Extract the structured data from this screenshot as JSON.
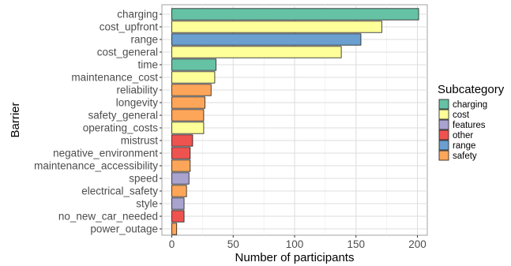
{
  "chart_data": {
    "type": "bar",
    "orientation": "horizontal",
    "xlabel": "Number of participants",
    "ylabel": "Barrier",
    "xlim": [
      0,
      210
    ],
    "x_ticks": [
      "0",
      "50",
      "100",
      "150",
      "200"
    ],
    "x_tick_values": [
      0,
      50,
      100,
      150,
      200
    ],
    "grid": true,
    "legend_position": "right",
    "legend": {
      "title": "Subcategory",
      "entries": [
        {
          "name": "charging",
          "color": "#66c2a5"
        },
        {
          "name": "cost",
          "color": "#ffff99"
        },
        {
          "name": "features",
          "color": "#a9a3d0"
        },
        {
          "name": "other",
          "color": "#ef5350"
        },
        {
          "name": "range",
          "color": "#6a9fcf"
        },
        {
          "name": "safety",
          "color": "#fda65a"
        }
      ]
    },
    "categories": [
      "charging",
      "cost_upfront",
      "range",
      "cost_general",
      "time",
      "maintenance_cost",
      "reliability",
      "longevity",
      "safety_general",
      "operating_costs",
      "mistrust",
      "negative_environment",
      "maintenance_accessibility",
      "speed",
      "electrical_safety",
      "style",
      "no_new_car_needed",
      "power_outage"
    ],
    "values": [
      201,
      171,
      154,
      138,
      36,
      35,
      32,
      27,
      26,
      26,
      17,
      15,
      15,
      14,
      12,
      10,
      10,
      4
    ],
    "subcategory": [
      "charging",
      "cost",
      "range",
      "cost",
      "charging",
      "cost",
      "safety",
      "safety",
      "safety",
      "cost",
      "other",
      "other",
      "safety",
      "features",
      "safety",
      "features",
      "other",
      "safety"
    ]
  }
}
